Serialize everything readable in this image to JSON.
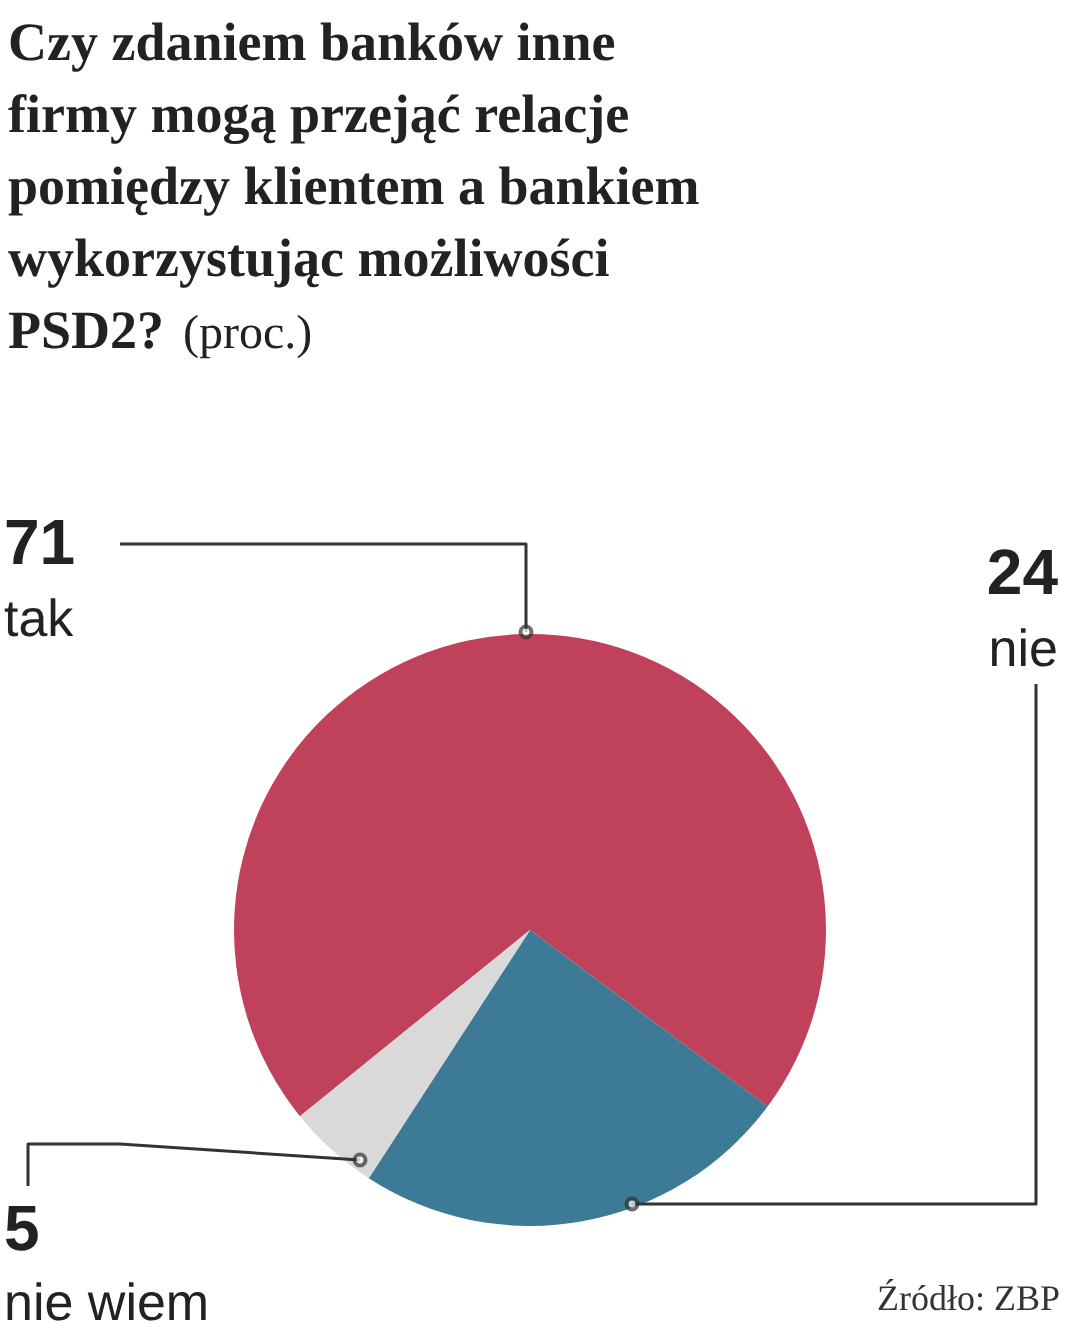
{
  "chart_data": {
    "type": "pie",
    "title": "Czy zdaniem banków inne firmy mogą przejąć relacje pomiędzy klientem a bankiem wykorzystując możliwości PSD2?",
    "subtitle": "(proc.)",
    "categories": [
      "tak",
      "nie",
      "nie wiem"
    ],
    "values": [
      71,
      24,
      5
    ],
    "colors": [
      "#c0415a",
      "#3d7a96",
      "#d9d9d9"
    ],
    "data_labels": true,
    "annotations": [
      "Źródło: ZBP"
    ]
  }
}
